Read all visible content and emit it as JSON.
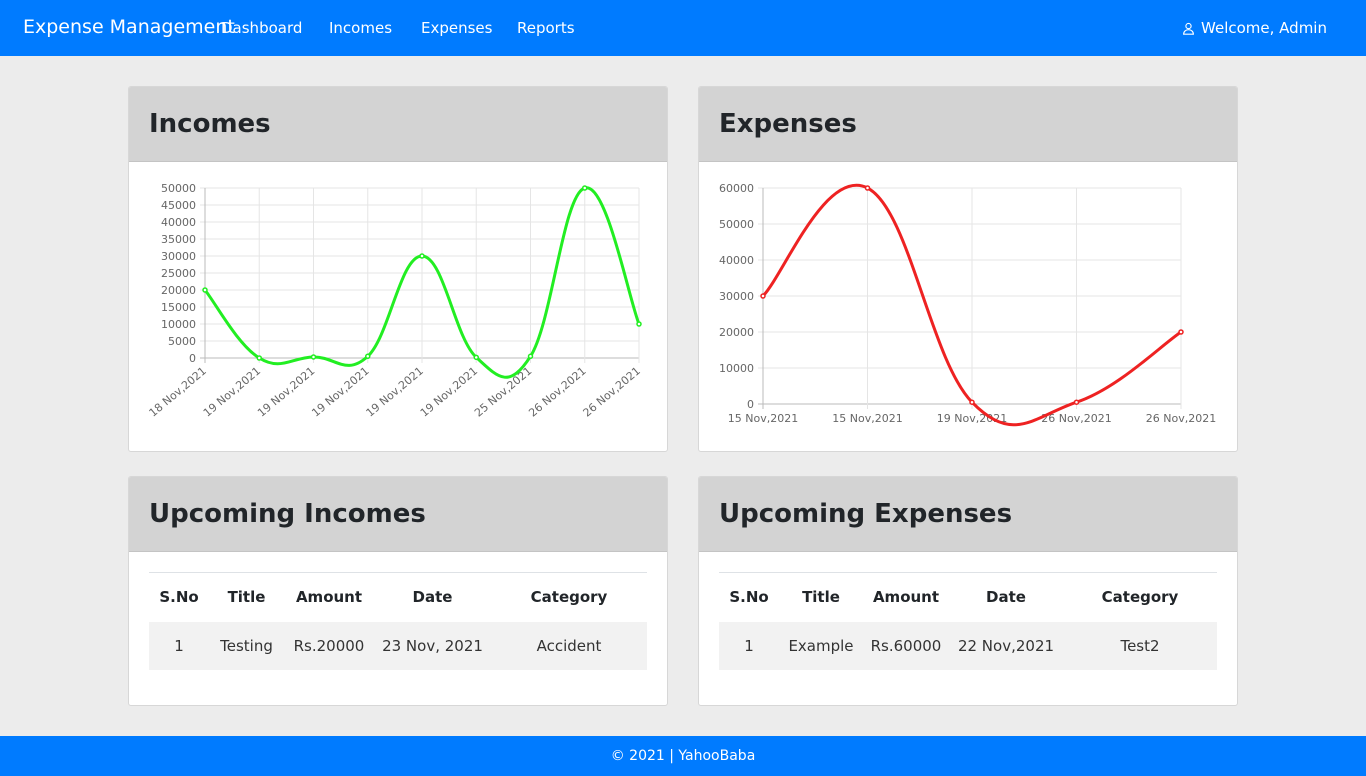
{
  "navbar": {
    "brand": "Expense Management",
    "links": [
      "Dashboard",
      "Incomes",
      "Expenses",
      "Reports"
    ],
    "welcome": "Welcome, Admin",
    "color": "#007bff"
  },
  "incomes_card": {
    "title": "Incomes"
  },
  "expenses_card": {
    "title": "Expenses"
  },
  "upcoming_incomes": {
    "title": "Upcoming Incomes",
    "headers": [
      "S.No",
      "Title",
      "Amount",
      "Date",
      "Category"
    ],
    "rows": [
      [
        "1",
        "Testing",
        "Rs.20000",
        "23 Nov, 2021",
        "Accident"
      ]
    ]
  },
  "upcoming_expenses": {
    "title": "Upcoming Expenses",
    "headers": [
      "S.No",
      "Title",
      "Amount",
      "Date",
      "Category"
    ],
    "rows": [
      [
        "1",
        "Example",
        "Rs.60000",
        "22 Nov,2021",
        "Test2"
      ]
    ]
  },
  "footer": {
    "text": "© 2021 | YahooBaba"
  },
  "chart_data": [
    {
      "type": "line",
      "categories": [
        "18 Nov,2021",
        "19 Nov,2021",
        "19 Nov,2021",
        "19 Nov,2021",
        "19 Nov,2021",
        "19 Nov,2021",
        "25 Nov,2021",
        "26 Nov,2021",
        "26 Nov,2021"
      ],
      "series": [
        {
          "values": [
            20000,
            0,
            300,
            500,
            30000,
            200,
            500,
            50000,
            10000
          ],
          "color": "#22ee22"
        }
      ],
      "ylim": [
        0,
        50000
      ],
      "yticks": [
        0,
        5000,
        10000,
        15000,
        20000,
        25000,
        30000,
        35000,
        40000,
        45000,
        50000
      ],
      "grid": true
    },
    {
      "type": "line",
      "categories": [
        "15 Nov,2021",
        "15 Nov,2021",
        "19 Nov,2021",
        "26 Nov,2021",
        "26 Nov,2021"
      ],
      "series": [
        {
          "values": [
            30000,
            60000,
            500,
            500,
            20000
          ],
          "color": "#ee2222"
        }
      ],
      "ylim": [
        0,
        60000
      ],
      "yticks": [
        0,
        10000,
        20000,
        30000,
        40000,
        50000,
        60000
      ],
      "grid": true
    }
  ]
}
